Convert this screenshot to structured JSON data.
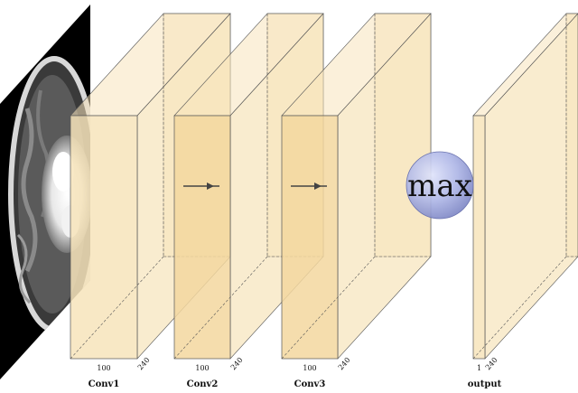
{
  "colors": {
    "layer_fill": "#f7e4bb",
    "layer_fill_shade": "#f3d79f",
    "layer_edge": "#555555",
    "max_fill": "#aeb6e6",
    "arrow": "#444444"
  },
  "layers": [
    {
      "name": "Conv1",
      "width_label": "100",
      "depth_label": "240"
    },
    {
      "name": "Conv2",
      "width_label": "100",
      "depth_label": "240"
    },
    {
      "name": "Conv3",
      "width_label": "100",
      "depth_label": "240"
    },
    {
      "name": "output",
      "width_label": "1",
      "depth_label": "240"
    }
  ],
  "pool": {
    "label": "max"
  },
  "icons": {
    "input": "brain-mri-slice-image",
    "arrow": "right-arrow-icon"
  }
}
